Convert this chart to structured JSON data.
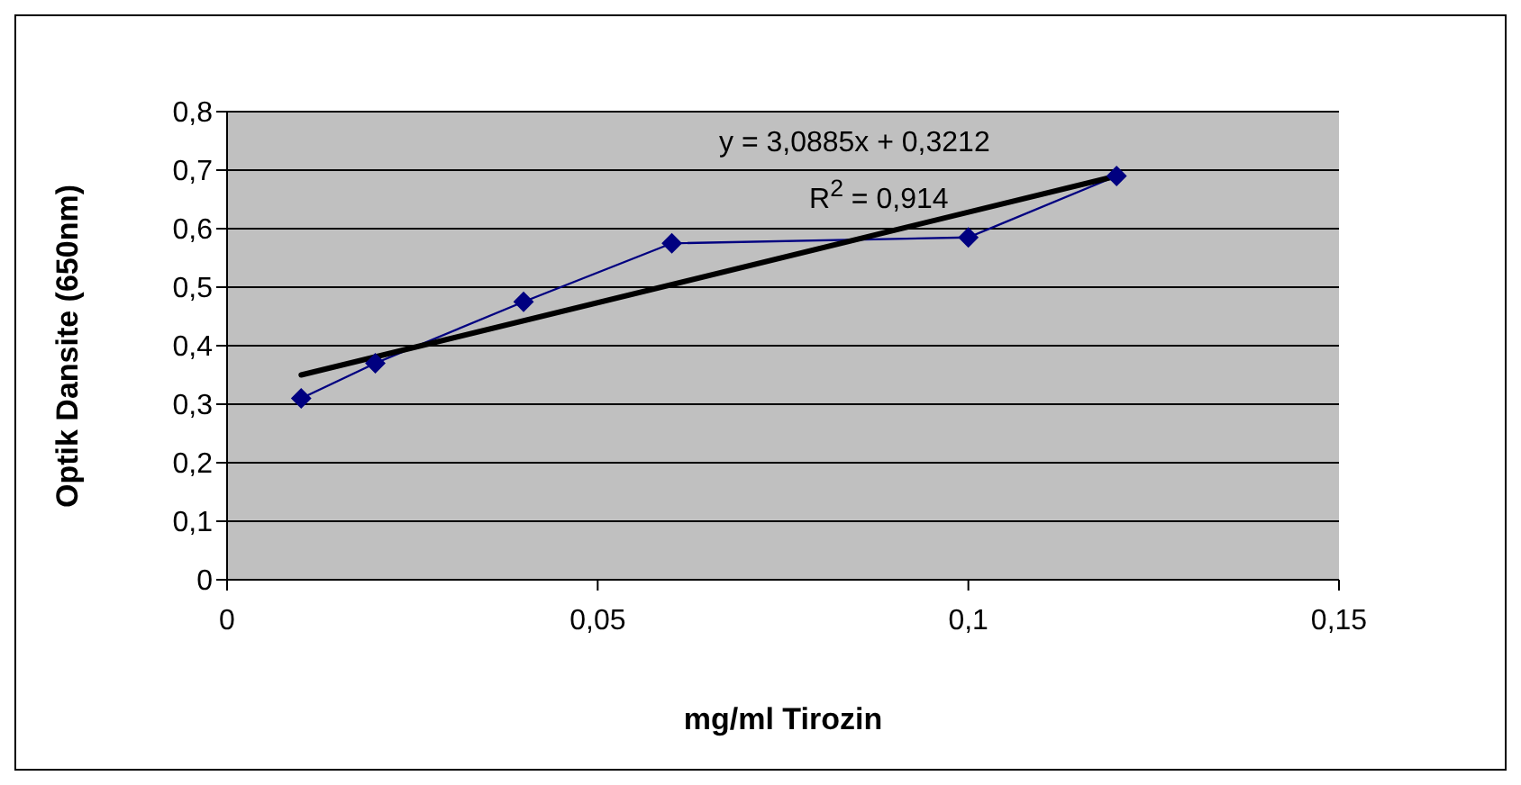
{
  "chart_data": {
    "type": "line",
    "xlabel": "mg/ml Tirozin",
    "ylabel": "Optik Dansite (650nm)",
    "x": [
      0.01,
      0.02,
      0.04,
      0.06,
      0.1,
      0.12
    ],
    "series": [
      {
        "color": "#000080",
        "values": [
          0.31,
          0.37,
          0.475,
          0.575,
          0.585,
          0.69
        ],
        "marker": "diamond"
      },
      {
        "type": "line",
        "color": "#000000",
        "x": [
          0.01,
          0.12
        ],
        "values": [
          0.35,
          0.69
        ],
        "marker": "none"
      }
    ],
    "xlim": [
      0,
      0.15
    ],
    "xticks": [
      0,
      {
        "value": 0.05,
        "label": "0,05"
      },
      {
        "value": 0.1,
        "label": "0,1"
      },
      {
        "value": 0.15,
        "label": "0,15"
      }
    ],
    "ylim": [
      0,
      0.8
    ],
    "yticks": [
      0,
      {
        "value": 0.1,
        "label": "0,1"
      },
      {
        "value": 0.2,
        "label": "0,2"
      },
      {
        "value": 0.3,
        "label": "0,3"
      },
      {
        "value": 0.4,
        "label": "0,4"
      },
      {
        "value": 0.5,
        "label": "0,5"
      },
      {
        "value": 0.6,
        "label": "0,6"
      },
      {
        "value": 0.7,
        "label": "0,7"
      },
      {
        "value": 0.8,
        "label": "0,8"
      }
    ],
    "grid": "y",
    "annotations": [
      "y = 3,0885x + 0,3212",
      "R$^{2}$ = 0,914"
    ]
  }
}
